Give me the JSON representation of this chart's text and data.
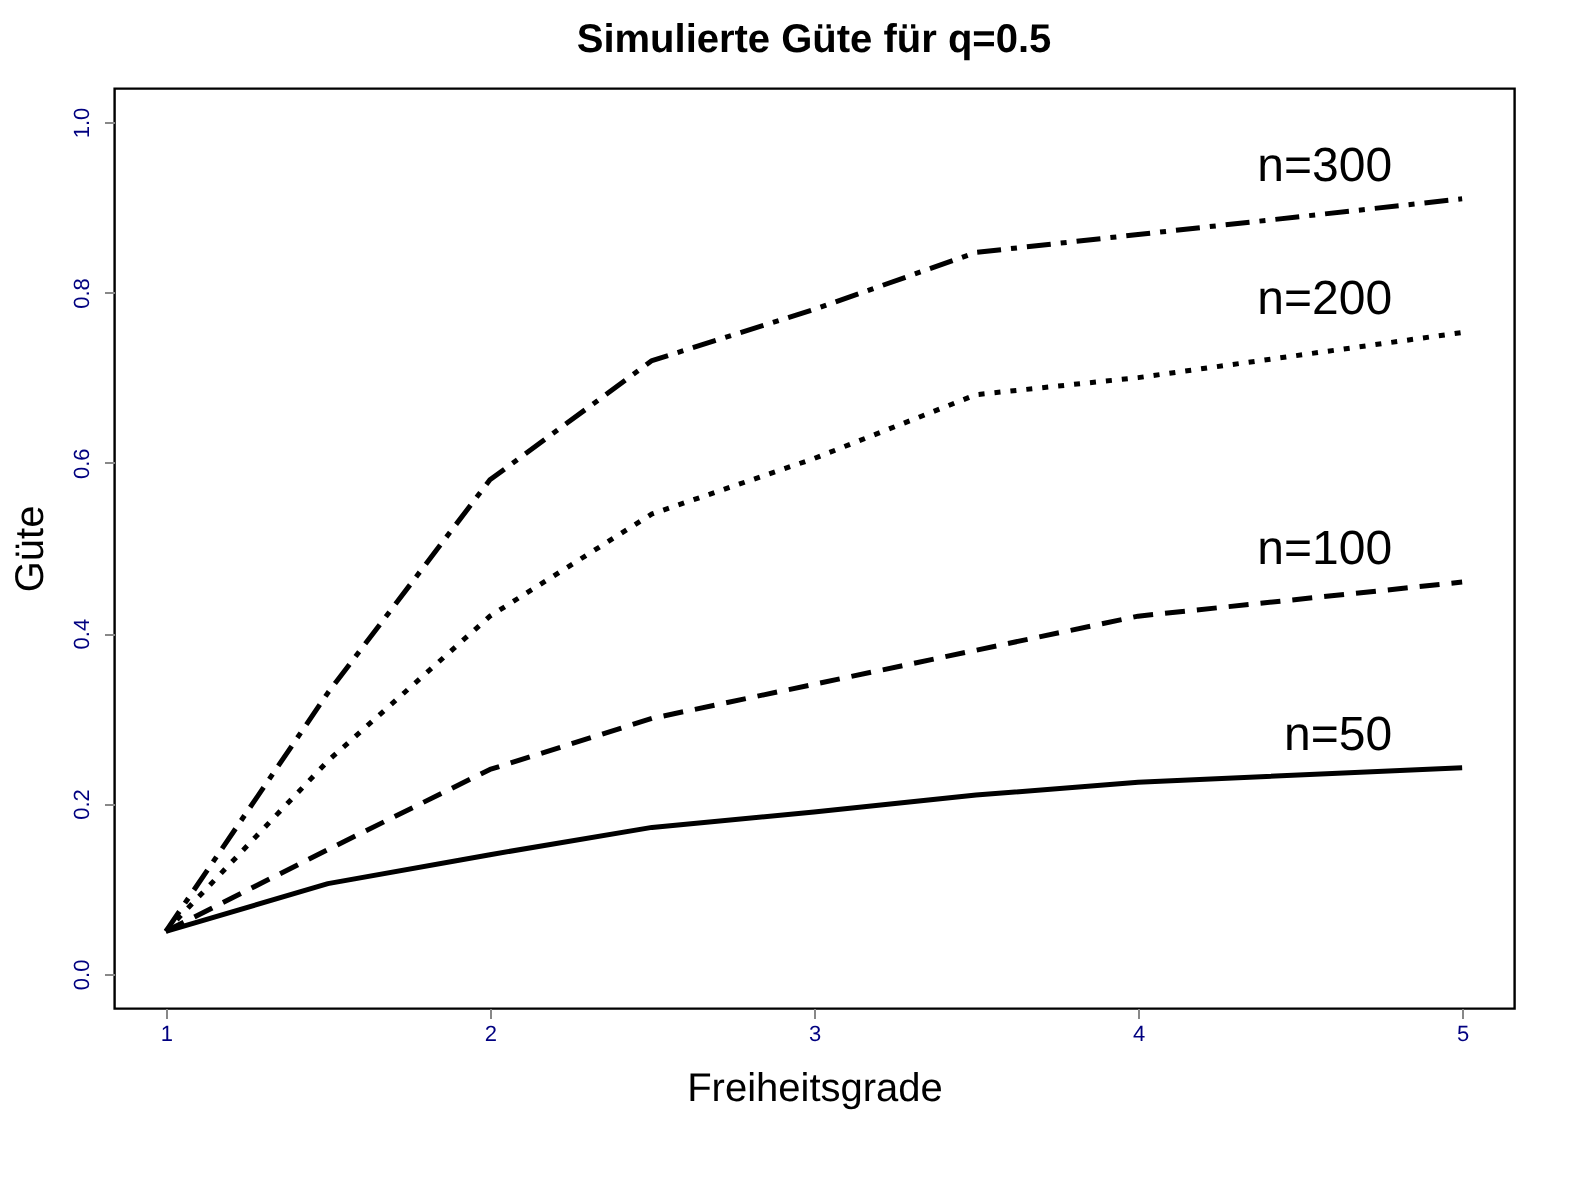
{
  "chart_data": {
    "type": "line",
    "title": "Simulierte Güte für q=0.5",
    "xlabel": "Freiheitsgrade",
    "ylabel": "Güte",
    "x": [
      1,
      1.5,
      2,
      2.5,
      3,
      3.5,
      4,
      5
    ],
    "series": [
      {
        "name": "n=50",
        "color": "#000000",
        "line_style": "solid",
        "values": [
          0.05,
          0.106,
          0.14,
          0.172,
          0.19,
          0.21,
          0.225,
          0.242
        ]
      },
      {
        "name": "n=100",
        "color": "#000000",
        "line_style": "dashed",
        "values": [
          0.05,
          0.146,
          0.24,
          0.3,
          0.34,
          0.38,
          0.42,
          0.46
        ]
      },
      {
        "name": "n=200",
        "color": "#000000",
        "line_style": "dotted",
        "values": [
          0.05,
          0.25,
          0.42,
          0.54,
          0.605,
          0.68,
          0.7,
          0.753
        ]
      },
      {
        "name": "n=300",
        "color": "#000000",
        "line_style": "dashdot",
        "values": [
          0.05,
          0.33,
          0.58,
          0.72,
          0.78,
          0.847,
          0.868,
          0.91
        ]
      }
    ],
    "xlim": [
      0.84,
      5.16
    ],
    "xticks": [
      1,
      2,
      3,
      4,
      5
    ],
    "ylim": [
      -0.04,
      1.04
    ],
    "yticks": [
      {
        "value": 0,
        "label": "0.0"
      },
      {
        "value": 0.2,
        "label": "0.2"
      },
      {
        "value": 0.4,
        "label": "0.4"
      },
      {
        "value": 0.6,
        "label": "0.6"
      },
      {
        "value": 0.8,
        "label": "0.8"
      },
      {
        "value": 1,
        "label": "1.0"
      }
    ],
    "grid": false,
    "legend": false,
    "marker": "none"
  }
}
